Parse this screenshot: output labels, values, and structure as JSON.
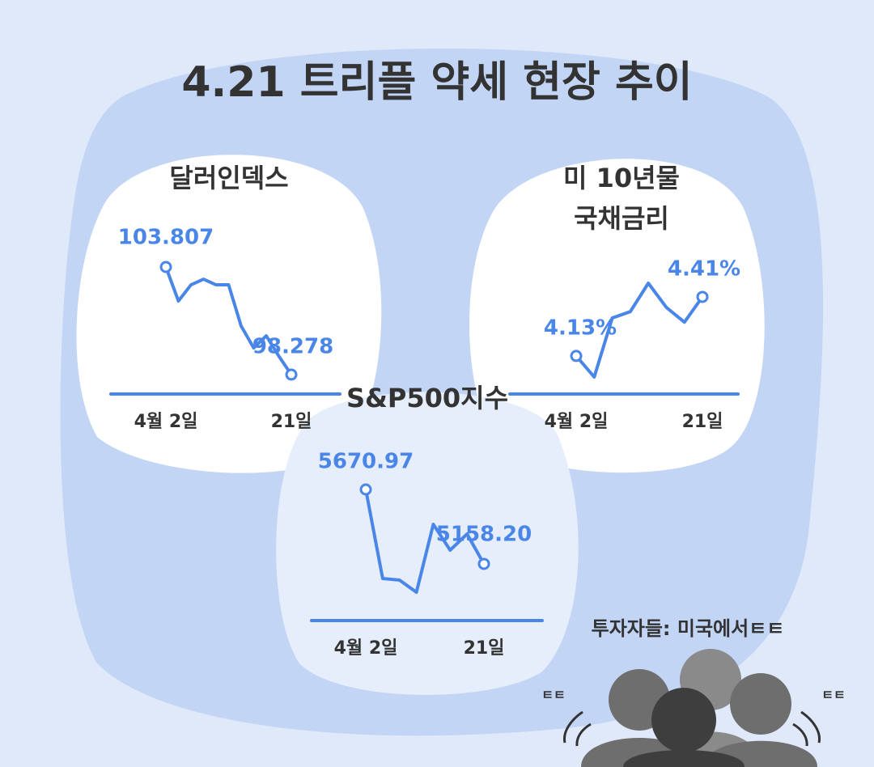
{
  "title": "4.21 트리플 약세 현장 추이",
  "note": "투자자들: 미국에서ㅌㅌ",
  "reactions": [
    "ㅌㅌ",
    "ㅌㅌ"
  ],
  "chart_data": [
    {
      "type": "line",
      "title": [
        "달러인덱스"
      ],
      "color": "#4a86e8",
      "categories": [
        "4월 2일",
        null,
        null,
        null,
        null,
        null,
        null,
        null,
        null,
        null,
        "21일"
      ],
      "values": [
        103.807,
        102.06,
        102.89,
        103.18,
        102.89,
        102.89,
        100.77,
        99.65,
        100.27,
        99.23,
        98.278
      ],
      "value_labels": [
        "103.807",
        null,
        null,
        null,
        null,
        null,
        null,
        null,
        null,
        null,
        "98.278"
      ]
    },
    {
      "type": "line",
      "title": [
        "미 10년물",
        "국채금리"
      ],
      "color": "#4a86e8",
      "categories": [
        "4월 2일",
        null,
        null,
        null,
        null,
        null,
        null,
        "21일"
      ],
      "values": [
        4.13,
        4.03,
        4.31,
        4.34,
        4.475,
        4.36,
        4.29,
        4.41
      ],
      "value_labels": [
        "4.13%",
        null,
        null,
        null,
        null,
        null,
        null,
        "4.41%"
      ]
    },
    {
      "type": "line",
      "title": [
        "S&P500지수"
      ],
      "color": "#4a86e8",
      "categories": [
        "4월 2일",
        null,
        null,
        null,
        null,
        null,
        null,
        "21일"
      ],
      "values": [
        5670.97,
        5057.8,
        5046.7,
        4963,
        5431,
        5253,
        5364.4,
        5158.2
      ],
      "value_labels": [
        "5670.97",
        null,
        null,
        null,
        null,
        null,
        null,
        "5158.20"
      ]
    }
  ]
}
